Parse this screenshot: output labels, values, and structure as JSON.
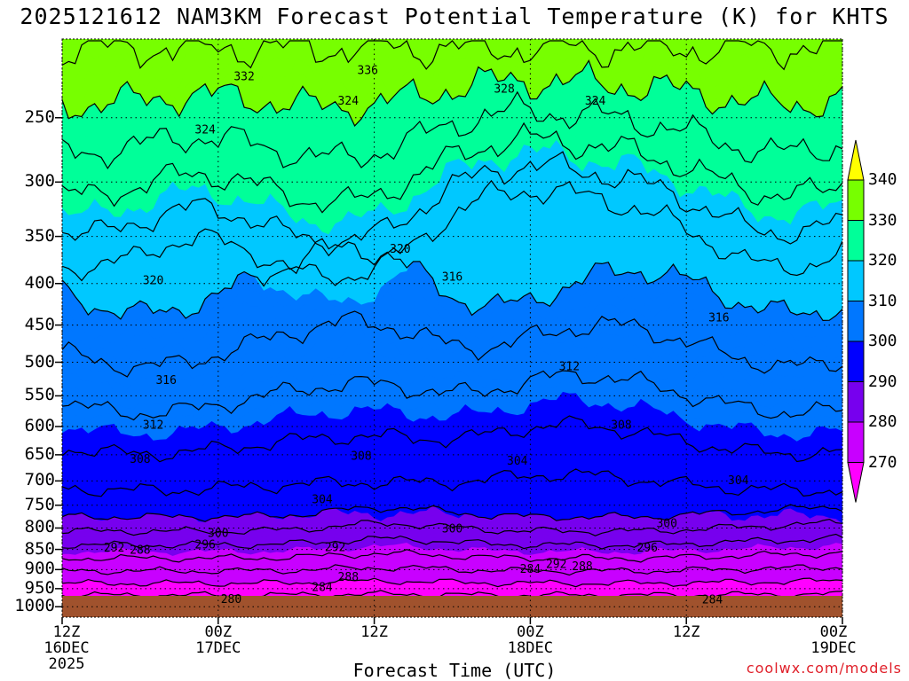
{
  "title": "2025121612 NAM3KM Forecast Potential Temperature (K) for KHTS",
  "credit": "coolwx.com/models",
  "chart_data": {
    "type": "contour",
    "title": "2025121612 NAM3KM Forecast Potential Temperature (K) for KHTS",
    "xlabel": "Forecast Time (UTC)",
    "ylabel": "",
    "y_scale": "log-pressure",
    "ylim": [
      1030,
      200
    ],
    "y_ticks": [
      250,
      300,
      350,
      400,
      450,
      500,
      550,
      600,
      650,
      700,
      750,
      800,
      850,
      900,
      950,
      1000
    ],
    "y_tick_labels": [
      "250",
      "300",
      "350",
      "400",
      "450",
      "500",
      "550",
      "600",
      "650",
      "700",
      "750",
      "800",
      "850",
      "900",
      "950",
      "1000"
    ],
    "x_ticks": [
      {
        "hour": 0,
        "lines": [
          "12Z",
          "16DEC",
          "2025"
        ]
      },
      {
        "hour": 12,
        "lines": [
          "00Z",
          "17DEC"
        ]
      },
      {
        "hour": 24,
        "lines": [
          "12Z",
          ""
        ]
      },
      {
        "hour": 36,
        "lines": [
          "00Z",
          "18DEC"
        ]
      },
      {
        "hour": 48,
        "lines": [
          "12Z",
          ""
        ]
      },
      {
        "hour": 60,
        "lines": [
          "00Z",
          "19DEC"
        ]
      }
    ],
    "grid": true,
    "colorbar": {
      "placement": "right",
      "levels": [
        270,
        280,
        290,
        300,
        310,
        320,
        330,
        340
      ],
      "labels": [
        "270",
        "280",
        "290",
        "300",
        "310",
        "320",
        "330",
        "340"
      ],
      "colors": [
        "#ff00ff",
        "#c800ff",
        "#7700ee",
        "#0000ff",
        "#0077ff",
        "#00c8ff",
        "#00ff99",
        "#77ff00",
        "#ffff00"
      ]
    },
    "shading_bands": [
      {
        "level": 270,
        "color": "#ff00ff"
      },
      {
        "level": 280,
        "color": "#c800ff"
      },
      {
        "level": 290,
        "color": "#7700ee"
      },
      {
        "level": 300,
        "color": "#0000ff"
      },
      {
        "level": 310,
        "color": "#0077ff"
      },
      {
        "level": 320,
        "color": "#00c8ff"
      },
      {
        "level": 330,
        "color": "#00ff99"
      },
      {
        "level": 340,
        "color": "#77ff00"
      }
    ],
    "contour_labels": [
      {
        "text": "336",
        "hour": 23.5,
        "p": 218
      },
      {
        "text": "332",
        "hour": 14,
        "p": 222
      },
      {
        "text": "328",
        "hour": 34,
        "p": 230
      },
      {
        "text": "324",
        "hour": 22,
        "p": 238
      },
      {
        "text": "324",
        "hour": 41,
        "p": 238
      },
      {
        "text": "324",
        "hour": 11,
        "p": 258
      },
      {
        "text": "320",
        "hour": 26,
        "p": 362
      },
      {
        "text": "320",
        "hour": 7,
        "p": 396
      },
      {
        "text": "316",
        "hour": 30,
        "p": 392
      },
      {
        "text": "316",
        "hour": 50.5,
        "p": 440
      },
      {
        "text": "316",
        "hour": 8,
        "p": 525
      },
      {
        "text": "312",
        "hour": 39,
        "p": 505
      },
      {
        "text": "312",
        "hour": 7,
        "p": 596
      },
      {
        "text": "308",
        "hour": 43,
        "p": 596
      },
      {
        "text": "308",
        "hour": 6,
        "p": 657
      },
      {
        "text": "308",
        "hour": 23,
        "p": 651
      },
      {
        "text": "304",
        "hour": 35,
        "p": 660
      },
      {
        "text": "304",
        "hour": 52,
        "p": 698
      },
      {
        "text": "304",
        "hour": 20,
        "p": 736
      },
      {
        "text": "300",
        "hour": 30,
        "p": 800
      },
      {
        "text": "300",
        "hour": 46.5,
        "p": 788
      },
      {
        "text": "300",
        "hour": 12,
        "p": 810
      },
      {
        "text": "296",
        "hour": 11,
        "p": 837
      },
      {
        "text": "296",
        "hour": 45,
        "p": 845
      },
      {
        "text": "292",
        "hour": 4,
        "p": 845
      },
      {
        "text": "292",
        "hour": 21,
        "p": 843
      },
      {
        "text": "292",
        "hour": 38,
        "p": 885
      },
      {
        "text": "288",
        "hour": 6,
        "p": 850
      },
      {
        "text": "288",
        "hour": 22,
        "p": 918
      },
      {
        "text": "288",
        "hour": 40,
        "p": 890
      },
      {
        "text": "284",
        "hour": 36,
        "p": 897
      },
      {
        "text": "284",
        "hour": 20,
        "p": 945
      },
      {
        "text": "284",
        "hour": 50,
        "p": 978
      },
      {
        "text": "280",
        "hour": 13,
        "p": 977
      }
    ]
  }
}
